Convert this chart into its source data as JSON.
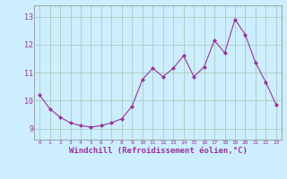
{
  "x": [
    0,
    1,
    2,
    3,
    4,
    5,
    6,
    7,
    8,
    9,
    10,
    11,
    12,
    13,
    14,
    15,
    16,
    17,
    18,
    19,
    20,
    21,
    22,
    23
  ],
  "y": [
    10.2,
    9.7,
    9.4,
    9.2,
    9.1,
    9.05,
    9.1,
    9.2,
    9.35,
    9.8,
    10.75,
    11.15,
    10.85,
    11.15,
    11.6,
    10.85,
    11.2,
    12.15,
    11.7,
    12.9,
    12.35,
    11.35,
    10.65,
    9.85
  ],
  "line_color": "#993399",
  "marker": "D",
  "marker_size": 2,
  "bg_color": "#cceeff",
  "grid_color": "#aaccbb",
  "xlabel": "Windchill (Refroidissement éolien,°C)",
  "xlabel_fontsize": 6.5,
  "tick_label_color": "#993399",
  "axis_label_color": "#993399",
  "yticks": [
    9,
    10,
    11,
    12,
    13
  ],
  "ylim": [
    8.6,
    13.4
  ],
  "xlim": [
    -0.5,
    23.5
  ],
  "xtick_fontsize": 4.5,
  "ytick_fontsize": 6.0
}
